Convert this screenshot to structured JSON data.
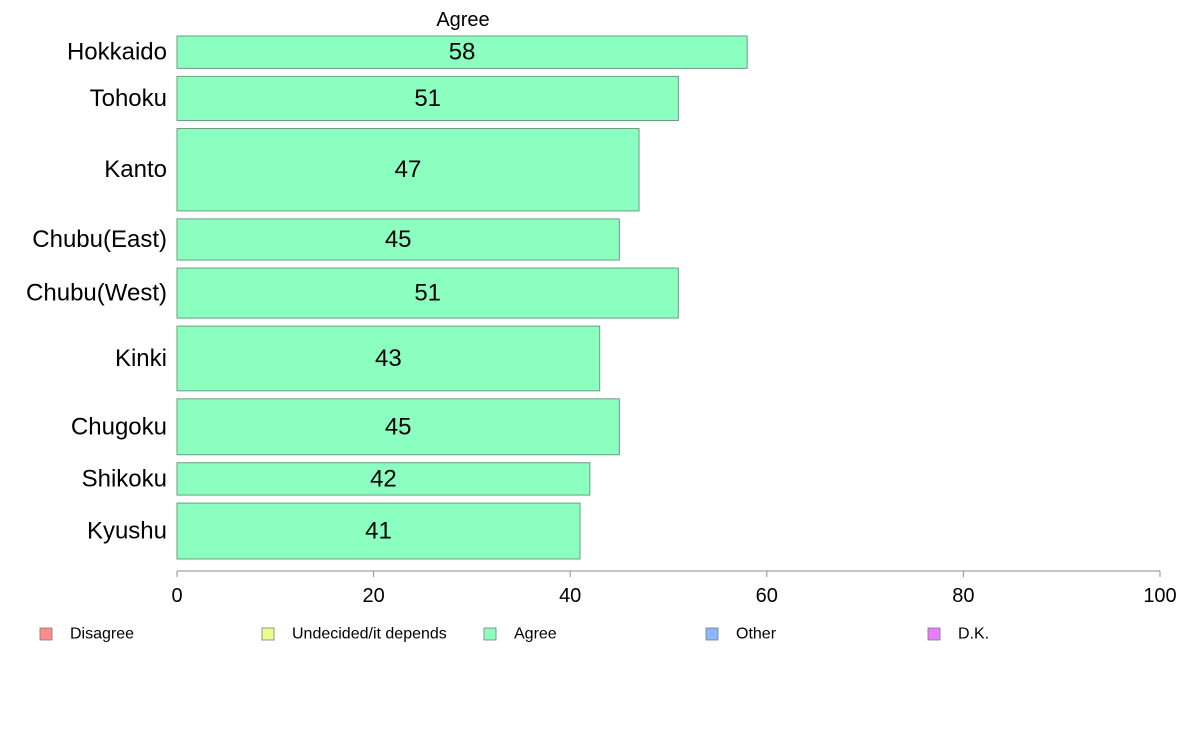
{
  "chart_data": {
    "type": "bar",
    "orientation": "horizontal",
    "title": "",
    "series_title": "Agree",
    "categories": [
      "Hokkaido",
      "Tohoku",
      "Kanto",
      "Chubu(East)",
      "Chubu(West)",
      "Kinki",
      "Chugoku",
      "Shikoku",
      "Kyushu"
    ],
    "series": [
      {
        "name": "Agree",
        "color": "#8bffbf",
        "values": [
          58,
          51,
          47,
          45,
          51,
          43,
          45,
          42,
          41
        ]
      }
    ],
    "data_labels": [
      "58",
      "51",
      "47",
      "45",
      "51",
      "43",
      "45",
      "42",
      "41"
    ],
    "bar_thickness_weights": [
      0.55,
      0.75,
      1.4,
      0.7,
      0.85,
      1.1,
      0.95,
      0.55,
      0.95
    ],
    "xlim": [
      0,
      100
    ],
    "xticks": [
      0,
      20,
      40,
      60,
      80,
      100
    ],
    "xtick_labels": [
      "0",
      "20",
      "40",
      "60",
      "80",
      "100"
    ],
    "xlabel": "",
    "ylabel": "",
    "grid": false,
    "legend_position": "bottom",
    "legend": [
      {
        "label": "Disagree",
        "color": "#ff8c8c"
      },
      {
        "label": "Undecided/it depends",
        "color": "#e8ff8c"
      },
      {
        "label": "Agree",
        "color": "#8bffbf"
      },
      {
        "label": "Other",
        "color": "#8cb8ff"
      },
      {
        "label": "D.K.",
        "color": "#e87dff"
      }
    ]
  }
}
